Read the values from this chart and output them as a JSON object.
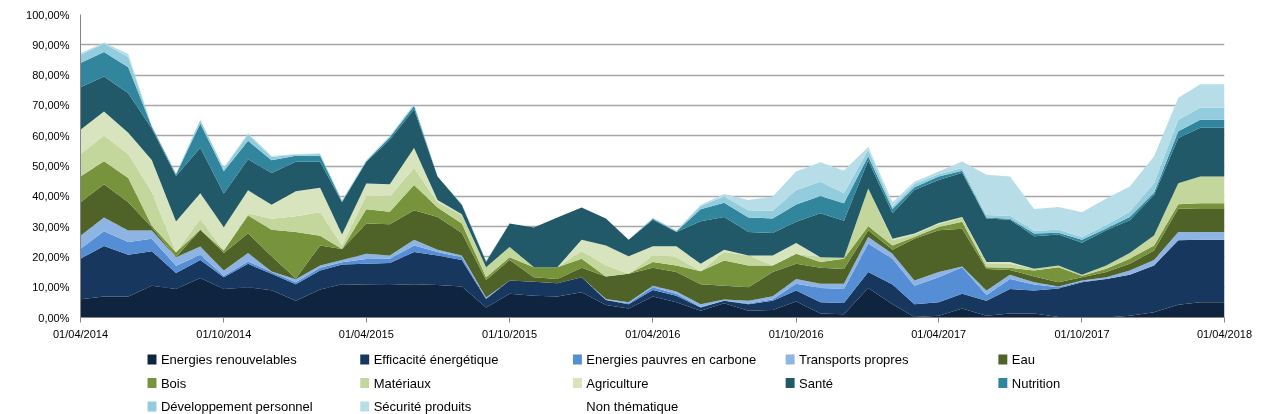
{
  "chart_data": {
    "type": "area",
    "stacked": true,
    "x": [
      "2014-04",
      "2014-05",
      "2014-06",
      "2014-07",
      "2014-08",
      "2014-09",
      "2014-10",
      "2014-11",
      "2014-12",
      "2015-01",
      "2015-02",
      "2015-03",
      "2015-04",
      "2015-05",
      "2015-06",
      "2015-07",
      "2015-08",
      "2015-09",
      "2015-10",
      "2015-11",
      "2015-12",
      "2016-01",
      "2016-02",
      "2016-03",
      "2016-04",
      "2016-05",
      "2016-06",
      "2016-07",
      "2016-08",
      "2016-09",
      "2016-10",
      "2016-11",
      "2016-12",
      "2017-01",
      "2017-02",
      "2017-03",
      "2017-04",
      "2017-05",
      "2017-06",
      "2017-07",
      "2017-08",
      "2017-09",
      "2017-10",
      "2017-11",
      "2017-12",
      "2018-01",
      "2018-02",
      "2018-03",
      "2018-04"
    ],
    "xlim": [
      "2014-04",
      "2018-04"
    ],
    "xticks": [
      {
        "value": "2014-04",
        "label": "01/04/2014"
      },
      {
        "value": "2014-10",
        "label": "01/10/2014"
      },
      {
        "value": "2015-04",
        "label": "01/04/2015"
      },
      {
        "value": "2015-10",
        "label": "01/10/2015"
      },
      {
        "value": "2016-04",
        "label": "01/04/2016"
      },
      {
        "value": "2016-10",
        "label": "01/10/2016"
      },
      {
        "value": "2017-04",
        "label": "01/04/2017"
      },
      {
        "value": "2017-10",
        "label": "01/10/2017"
      },
      {
        "value": "2018-04",
        "label": "01/04/2018"
      }
    ],
    "ylim": [
      0,
      100
    ],
    "yticks": [
      {
        "value": 0,
        "label": "0,00%"
      },
      {
        "value": 10,
        "label": "10,00%"
      },
      {
        "value": 20,
        "label": "20,00%"
      },
      {
        "value": 30,
        "label": "30,00%"
      },
      {
        "value": 40,
        "label": "40,00%"
      },
      {
        "value": 50,
        "label": "50,00%"
      },
      {
        "value": 60,
        "label": "60,00%"
      },
      {
        "value": 70,
        "label": "70,00%"
      },
      {
        "value": 80,
        "label": "80,00%"
      },
      {
        "value": 90,
        "label": "90,00%"
      },
      {
        "value": 100,
        "label": "100,00%"
      }
    ],
    "grid": "y",
    "legend": "bottom",
    "series": [
      {
        "name": "Energies renouvelables",
        "color": "#0f243e",
        "values": [
          6,
          6.9,
          6.9,
          10.5,
          9.4,
          13,
          9.4,
          10,
          9,
          5.5,
          9.2,
          11,
          10.8,
          10.7,
          11,
          10.7,
          10.2,
          3.3,
          7.8,
          7.2,
          6.9,
          8.3,
          4.1,
          3,
          6.9,
          5,
          2.2,
          4.7,
          2.2,
          2.5,
          5.3,
          1.3,
          1.1,
          9.7,
          4.4,
          0.2,
          0.6,
          3,
          0.6,
          1.3,
          1.3,
          0.2,
          0,
          0,
          0.6,
          1.7,
          4.2,
          5,
          5
        ]
      },
      {
        "name": "Efficacité énergétique",
        "color": "#17375e",
        "values": [
          13.4,
          16.7,
          13.8,
          11.4,
          5.3,
          6,
          3.9,
          7.7,
          5.4,
          5.5,
          6.3,
          6.5,
          6.9,
          7.3,
          10.6,
          9.8,
          8.8,
          2.8,
          4.4,
          4.6,
          4.4,
          5,
          1.7,
          1.4,
          2.2,
          2.2,
          1.1,
          0.8,
          2.2,
          3,
          3.6,
          3.7,
          3.7,
          5.3,
          6.5,
          4.2,
          4.4,
          4.8,
          4.9,
          8.1,
          7.6,
          9.4,
          11.6,
          12.7,
          13.5,
          15.5,
          21.3,
          20.7,
          20.7
        ]
      },
      {
        "name": "Energies pauvres en carbone",
        "color": "#558ed5",
        "values": [
          3.3,
          4.9,
          4.2,
          4.1,
          2.4,
          1.7,
          0.5,
          0.8,
          0.6,
          0.6,
          0.9,
          0.7,
          1.6,
          1.4,
          2.2,
          1.1,
          0.9,
          0.3,
          0,
          0,
          0,
          0,
          0,
          0.3,
          0.9,
          0.6,
          0.2,
          0,
          0.2,
          0.5,
          2.2,
          4.7,
          4.6,
          9.4,
          8.5,
          6.1,
          8.3,
          8.8,
          1.9,
          3.3,
          2,
          0.4,
          0.4,
          0,
          0,
          0,
          0,
          0,
          0
        ]
      },
      {
        "name": "Transports propres",
        "color": "#8eb4e3",
        "values": [
          4.3,
          4.5,
          3.8,
          2.7,
          2.8,
          2.7,
          1.7,
          2.8,
          0.2,
          1,
          0.8,
          0.8,
          1.7,
          1.1,
          1.9,
          0.8,
          0.6,
          0.2,
          0,
          0,
          0,
          0,
          0.3,
          0.3,
          0.5,
          0.8,
          0.9,
          0.4,
          0.9,
          1,
          1.6,
          1.4,
          1.7,
          2.2,
          1.6,
          1.7,
          1.7,
          0.2,
          1.5,
          1.4,
          0.7,
          0.2,
          0.2,
          0.6,
          1.4,
          1.8,
          2.7,
          2.5,
          2.5
        ]
      },
      {
        "name": "Eau",
        "color": "#4f6228",
        "values": [
          11,
          11,
          9.3,
          1.1,
          0,
          5.6,
          5.8,
          6.5,
          5,
          0.3,
          6.6,
          3.6,
          10,
          10.3,
          9.7,
          10.8,
          7.4,
          5.8,
          6.8,
          1.5,
          1.4,
          3.1,
          7.4,
          9.4,
          5.9,
          6.4,
          6.6,
          4.6,
          4.5,
          8,
          5,
          5.3,
          4.9,
          2.2,
          1.4,
          13.8,
          13.8,
          12.5,
          7.1,
          1.6,
          1.9,
          1.4,
          1.1,
          1.7,
          2.2,
          3.1,
          7.8,
          7.6,
          7.6
        ]
      },
      {
        "name": "Bois",
        "color": "#77933c",
        "values": [
          8.5,
          7.6,
          8,
          0.6,
          1.6,
          0,
          0.8,
          5.9,
          8.8,
          15.3,
          3.2,
          0,
          4.7,
          4.1,
          8.3,
          3.1,
          3.1,
          0.9,
          0.9,
          3.3,
          3.9,
          3,
          0,
          0,
          1.9,
          2.2,
          4.3,
          8.3,
          7.2,
          2.2,
          3.3,
          1.9,
          3.4,
          1.3,
          1.4,
          0.6,
          1.1,
          2.3,
          0.6,
          0.7,
          2,
          5,
          0.5,
          1.1,
          1.7,
          1.7,
          1.4,
          1.9,
          1.9
        ]
      },
      {
        "name": "Matériaux",
        "color": "#c3d69b",
        "values": [
          7.5,
          8.4,
          8,
          11,
          0,
          3.4,
          0,
          0.6,
          3.6,
          5.2,
          7.7,
          1.2,
          4.6,
          5,
          5.6,
          1.7,
          2.8,
          3.3,
          3.4,
          0,
          0,
          2.5,
          3.7,
          0,
          2.2,
          2.7,
          0,
          2.8,
          3.3,
          0,
          0,
          1.6,
          0.3,
          12.5,
          1.7,
          0.8,
          0.9,
          1.4,
          1.3,
          1.3,
          0.6,
          0.6,
          0.3,
          1.1,
          1.9,
          3.3,
          6.9,
          8.8,
          8.8
        ]
      },
      {
        "name": "Agriculture",
        "color": "#d7e4bd",
        "values": [
          8,
          8,
          7,
          10.6,
          10.2,
          8.6,
          7.7,
          7.7,
          4.6,
          8.3,
          8.1,
          3.6,
          3.9,
          4.1,
          6.6,
          0.8,
          0.3,
          0,
          0,
          0,
          0,
          3.8,
          6.6,
          5.8,
          3,
          3.6,
          2.4,
          0.8,
          0,
          3.3,
          3.6,
          0,
          0,
          0,
          0.5,
          0.3,
          0.4,
          0.2,
          0.4,
          0.6,
          0,
          0,
          0,
          0,
          0,
          0,
          0,
          0,
          0
        ]
      },
      {
        "name": "Santé",
        "color": "#215968",
        "values": [
          14,
          11.5,
          13,
          10.4,
          15,
          15,
          11.1,
          10.2,
          10.5,
          9.7,
          8.6,
          10.6,
          7.2,
          14.7,
          12.8,
          7.7,
          3,
          1.7,
          7.7,
          13.1,
          16.4,
          10.6,
          8.9,
          5.5,
          8.8,
          4.7,
          14.1,
          10.8,
          7.7,
          7.4,
          7,
          14.5,
          12.2,
          9.2,
          8.4,
          14.4,
          14.2,
          14.6,
          14.4,
          14,
          10.7,
          10.2,
          10.6,
          11.6,
          10.8,
          13.3,
          14.9,
          16.1,
          16.1
        ]
      },
      {
        "name": "Nutrition",
        "color": "#31859c",
        "values": [
          8,
          8.1,
          8.6,
          0.6,
          0.5,
          8,
          7.4,
          6.1,
          4.2,
          2,
          2,
          0.3,
          0.2,
          0.8,
          1.1,
          0,
          0.2,
          0.3,
          0,
          0,
          0,
          0,
          0,
          0,
          0.3,
          0.2,
          3.9,
          4.7,
          4.8,
          4.8,
          5.7,
          5.7,
          5.8,
          1.4,
          1.4,
          0.9,
          1.1,
          0.6,
          0.3,
          0.3,
          0.9,
          0.6,
          1,
          0.6,
          1.1,
          0.8,
          2.3,
          2.7,
          2.7
        ]
      },
      {
        "name": "Développement personnel",
        "color": "#93cddd",
        "values": [
          2.7,
          2.8,
          3.4,
          0.2,
          0.3,
          1.2,
          0.9,
          2.2,
          1.1,
          0.4,
          0.6,
          0.3,
          0.2,
          0.3,
          0.5,
          0,
          0.1,
          0,
          0,
          0,
          0,
          0,
          0,
          0,
          0.2,
          0.2,
          1.1,
          2,
          2.4,
          2.5,
          4.8,
          4.7,
          3.3,
          2.2,
          0.8,
          1.1,
          0.8,
          0.9,
          0.8,
          1,
          0.9,
          1,
          0.9,
          1.1,
          1.7,
          3.1,
          3.8,
          3.9,
          3.9
        ]
      },
      {
        "name": "Sécurité produits",
        "color": "#b7dee8",
        "values": [
          0.5,
          0.4,
          1,
          0.1,
          0,
          0,
          0.3,
          0.3,
          0.3,
          0.2,
          0.1,
          0.2,
          0.2,
          0.1,
          0.2,
          0,
          0,
          0,
          0,
          0,
          0,
          0,
          0,
          0,
          0.1,
          0.2,
          0.3,
          0.9,
          3.4,
          4.7,
          6.1,
          6.4,
          7.5,
          0.9,
          1.4,
          0.7,
          0.9,
          2.2,
          13.3,
          12.9,
          7.2,
          7.5,
          8.1,
          8.8,
          8.3,
          8.9,
          7.2,
          7.8,
          7.8
        ]
      },
      {
        "name": "Non thématique",
        "color": null,
        "values": [
          null,
          null,
          null,
          null,
          null,
          null,
          null,
          null,
          null,
          null,
          null,
          null,
          null,
          null,
          null,
          null,
          null,
          null,
          null,
          null,
          null,
          null,
          null,
          null,
          null,
          null,
          null,
          null,
          null,
          null,
          null,
          null,
          null,
          null,
          null,
          null,
          null,
          null,
          null,
          null,
          null,
          null,
          null,
          null,
          null,
          null,
          null,
          null,
          null
        ]
      }
    ]
  }
}
